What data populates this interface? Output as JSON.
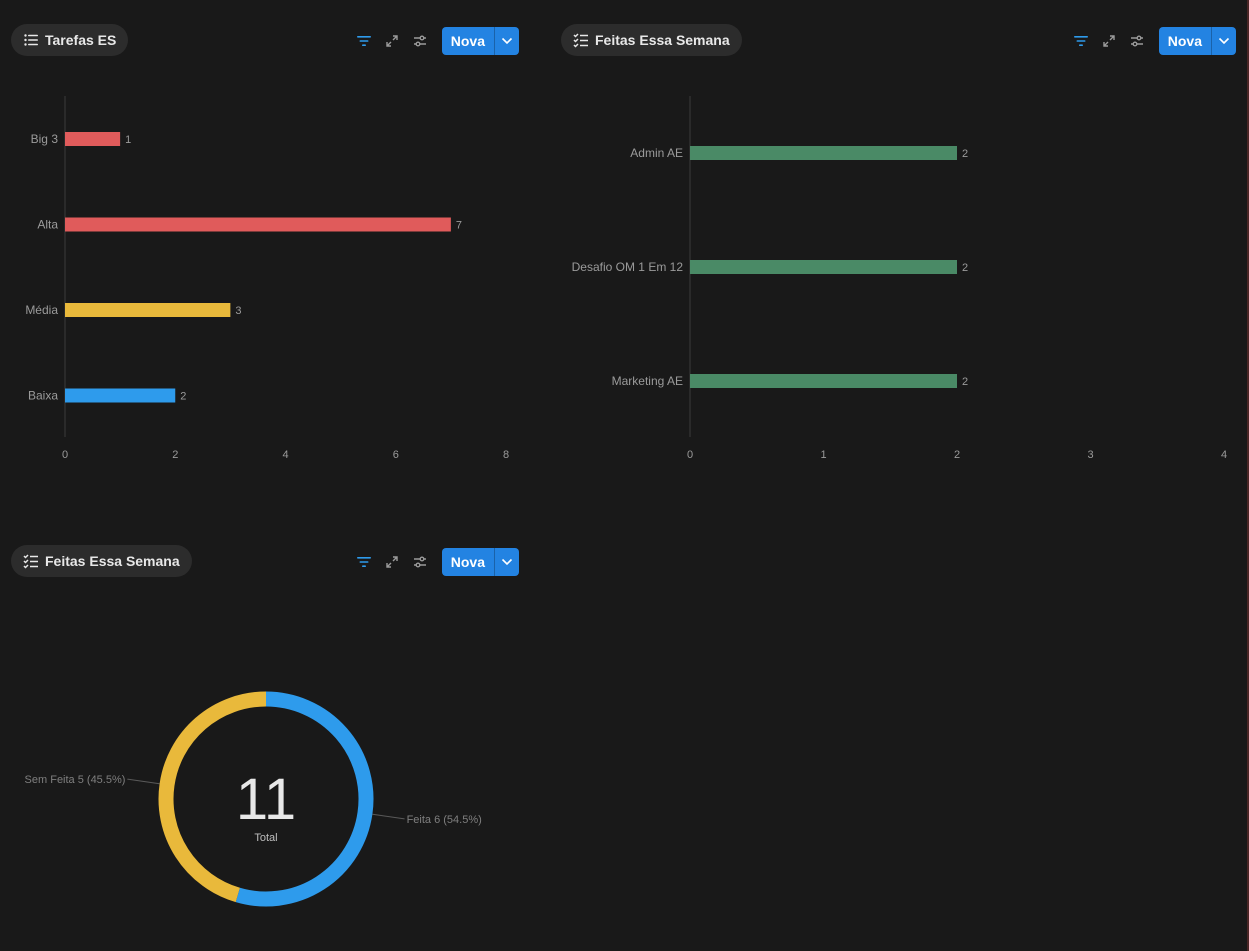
{
  "colors": {
    "accent": "#2383e2",
    "red": "#e05b5b",
    "yellow": "#e9b93b",
    "blue": "#2e9bec",
    "green": "#4a8a66"
  },
  "panels": [
    {
      "title": "Tarefas ES",
      "tab_icon": "list-icon",
      "new_label": "Nova"
    },
    {
      "title": "Feitas Essa Semana",
      "tab_icon": "checklist-icon",
      "new_label": "Nova"
    },
    {
      "title": "Feitas Essa Semana",
      "tab_icon": "checklist-icon",
      "new_label": "Nova"
    }
  ],
  "chart_data": [
    {
      "type": "bar",
      "orientation": "horizontal",
      "categories": [
        "Big 3",
        "Alta",
        "Média",
        "Baixa"
      ],
      "values": [
        1,
        7,
        3,
        2
      ],
      "bar_colors": [
        "#e05b5b",
        "#e05b5b",
        "#e9b93b",
        "#2e9bec"
      ],
      "xlim": [
        0,
        8
      ],
      "xticks": [
        0,
        2,
        4,
        6,
        8
      ]
    },
    {
      "type": "bar",
      "orientation": "horizontal",
      "categories": [
        "Admin AE",
        "Desafio OM 1 Em 12",
        "Marketing AE"
      ],
      "values": [
        2,
        2,
        2
      ],
      "bar_colors": [
        "#4a8a66",
        "#4a8a66",
        "#4a8a66"
      ],
      "xlim": [
        0,
        4
      ],
      "xticks": [
        0,
        1,
        2,
        3,
        4
      ]
    },
    {
      "type": "pie",
      "donut": true,
      "total": "11",
      "total_label": "Total",
      "slices": [
        {
          "name": "Feita",
          "value": 6,
          "label": "Feita  6 (54.5%)",
          "color": "#2e9bec"
        },
        {
          "name": "Sem Feita",
          "value": 5,
          "label": "Sem Feita  5 (45.5%)",
          "color": "#e9b93b"
        }
      ]
    }
  ]
}
